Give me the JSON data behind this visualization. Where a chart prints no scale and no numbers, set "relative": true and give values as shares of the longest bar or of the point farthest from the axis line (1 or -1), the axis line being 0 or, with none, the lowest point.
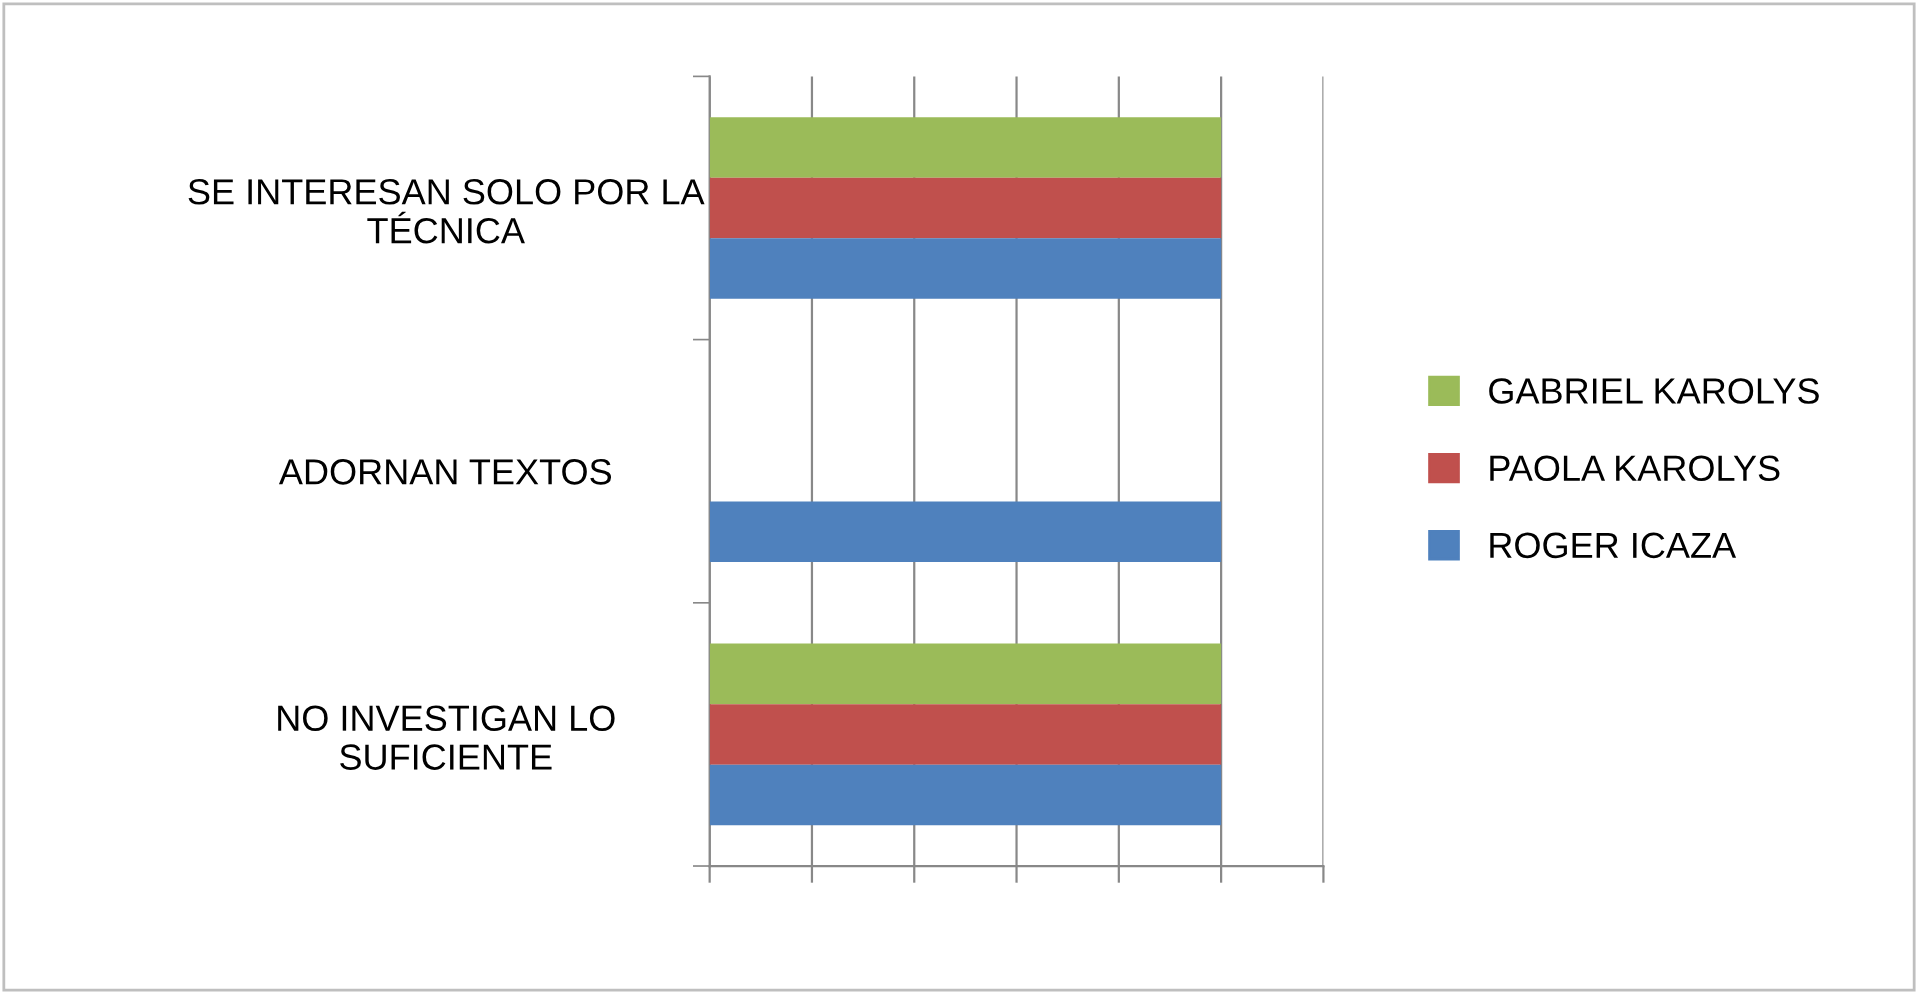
{
  "chart_data": {
    "type": "bar",
    "orientation": "horizontal",
    "relative": true,
    "grid": "x",
    "legend": "right",
    "categories": [
      "SE INTERESAN SOLO POR LA\nTÉCNICA",
      "ADORNAN TEXTOS",
      "NO INVESTIGAN LO\nSUFICIENTE"
    ],
    "series": [
      {
        "name": "GABRIEL KAROLYS",
        "color": "#9bbb59",
        "values": [
          1,
          null,
          1
        ]
      },
      {
        "name": "PAOLA KAROLYS",
        "color": "#c0504d",
        "values": [
          1,
          null,
          1
        ]
      },
      {
        "name": "ROGER ICAZA",
        "color": "#4f81bd",
        "values": [
          1,
          1,
          1
        ]
      }
    ]
  }
}
